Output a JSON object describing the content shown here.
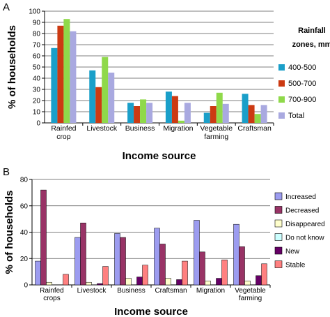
{
  "chart_data": [
    {
      "panel_label": "A",
      "type": "bar",
      "title": "",
      "xlabel": "Income source",
      "ylabel": "% of households",
      "ylim": [
        0,
        100
      ],
      "yticks": [
        0,
        10,
        20,
        30,
        40,
        50,
        60,
        70,
        80,
        90,
        100
      ],
      "grid": true,
      "legend_placement": "right",
      "legend_title": [
        "Rainfall",
        "zones, mm"
      ],
      "categories": [
        [
          "Rainfed",
          "crop"
        ],
        [
          "Livestock"
        ],
        [
          "Business"
        ],
        [
          "Migration"
        ],
        [
          "Vegetable",
          "farming"
        ],
        [
          "Craftsman"
        ]
      ],
      "series": [
        {
          "name": "400-500",
          "color": "#1a9fc9",
          "values": [
            67,
            47,
            18,
            28,
            9,
            26
          ]
        },
        {
          "name": "500-700",
          "color": "#cc3a12",
          "values": [
            87,
            32,
            15,
            24,
            15,
            16
          ]
        },
        {
          "name": "700-900",
          "color": "#8fd94a",
          "values": [
            93,
            59,
            21,
            2,
            27,
            8
          ]
        },
        {
          "name": "Total",
          "color": "#a9a9e0",
          "values": [
            82,
            45,
            18,
            18,
            17,
            16
          ]
        }
      ]
    },
    {
      "panel_label": "B",
      "type": "bar",
      "title": "",
      "xlabel": "Income source",
      "ylabel": "% of households",
      "ylim": [
        0,
        80
      ],
      "yticks": [
        0,
        20,
        40,
        60,
        80
      ],
      "grid": true,
      "legend_placement": "right",
      "categories": [
        [
          "Rainfed",
          "crops"
        ],
        [
          "Livestock"
        ],
        [
          "Business"
        ],
        [
          "Craftsman"
        ],
        [
          "Migration"
        ],
        [
          "Vegetable",
          "farming"
        ]
      ],
      "series": [
        {
          "name": "Increased",
          "color": "#9c9cf0",
          "values": [
            18,
            36,
            39,
            43,
            49,
            46
          ]
        },
        {
          "name": "Decreased",
          "color": "#993366",
          "values": [
            72,
            47,
            36,
            31,
            25,
            29
          ]
        },
        {
          "name": "Disappeared",
          "color": "#ffffcc",
          "values": [
            2,
            2,
            5,
            5,
            3,
            3
          ]
        },
        {
          "name": "Do not know",
          "color": "#ccffff",
          "values": [
            0,
            0,
            0,
            0,
            0,
            0
          ]
        },
        {
          "name": "New",
          "color": "#660066",
          "values": [
            0,
            1,
            6,
            4,
            5,
            7
          ]
        },
        {
          "name": "Stable",
          "color": "#ff8080",
          "values": [
            8,
            14,
            15,
            18,
            19,
            16
          ]
        }
      ]
    }
  ]
}
